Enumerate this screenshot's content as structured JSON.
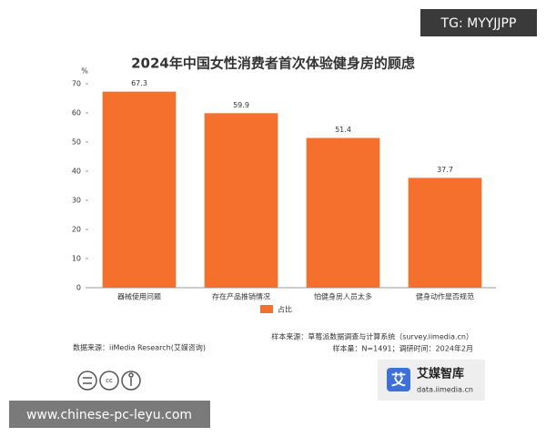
{
  "chart_data": {
    "type": "bar",
    "title": "2024年中国女性消费者首次体验健身房的顾虑",
    "y_unit": "%",
    "categories": [
      "器械使用问题",
      "存在产品推销情况",
      "怕健身房人员太多",
      "健身动作是否规范"
    ],
    "series": [
      {
        "name": "占比",
        "color": "#f5702d",
        "values": [
          67.3,
          59.9,
          51.4,
          37.7
        ]
      }
    ],
    "ylim": [
      0,
      70
    ],
    "yticks": [
      0,
      10,
      20,
      30,
      40,
      50,
      60,
      70
    ],
    "grid": false
  },
  "footer": {
    "data_source": "数据来源：iiMedia Research(艾媒咨询)",
    "sample_source": "样本来源：草莓派数据调查与计算系统（survey.iimedia.cn）",
    "sample_size": "样本量：N=1491；调研时间：2024年2月"
  },
  "logo": {
    "icon": "艾",
    "name": "艾媒智库",
    "url": "data.iimedia.cn"
  },
  "watermarks": {
    "top": "TG: MYYJJPP",
    "bottom": "www.chinese-pc-leyu.com"
  }
}
